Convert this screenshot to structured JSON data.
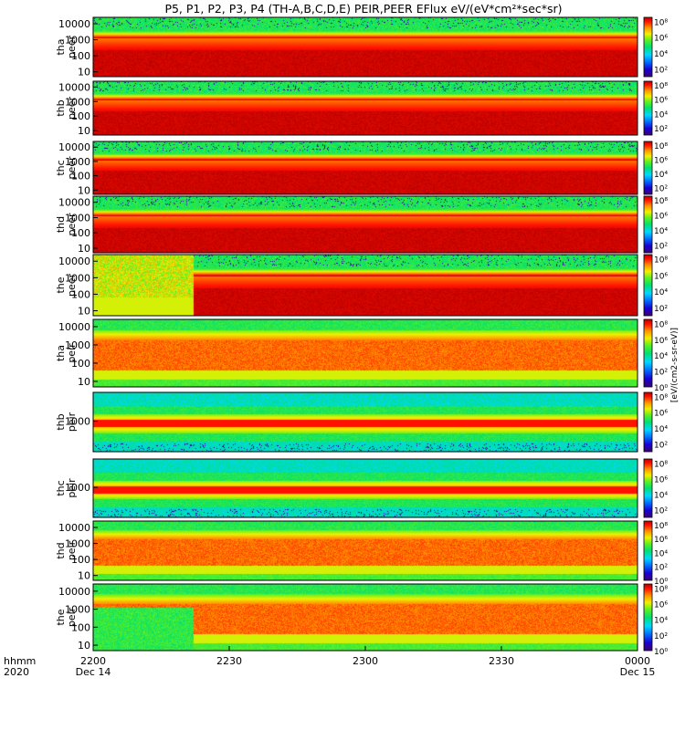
{
  "chart_data": {
    "type": "heatmap",
    "title": "P5, P1, P2, P3, P4 (TH-A,B,C,D,E) PEIR,PEER EFlux eV/(eV*cm²*sec*sr)",
    "x_axis": {
      "row_label_top": "hhmm",
      "row_label_bottom": "2020",
      "ticks": [
        {
          "t": 0,
          "label": "2200",
          "sub": "Dec 14"
        },
        {
          "t": 30,
          "label": "2230",
          "sub": ""
        },
        {
          "t": 60,
          "label": "2300",
          "sub": ""
        },
        {
          "t": 90,
          "label": "2330",
          "sub": ""
        },
        {
          "t": 120,
          "label": "0000",
          "sub": "Dec 15"
        }
      ],
      "range_minutes": [
        0,
        120
      ]
    },
    "colorbar": {
      "label": "[eV/(cm2-s-sr-eV)]",
      "scale": "log"
    },
    "panels": [
      {
        "probe": "tha",
        "product": "peer",
        "yscale": "log",
        "yticks": [
          "10000",
          "1000",
          "100",
          "10"
        ],
        "ylim": [
          5,
          25000
        ],
        "cticks": [
          "10⁸",
          "10⁶",
          "10⁴",
          "10²"
        ],
        "cmin": 1,
        "cmax": 8.5,
        "kind": "electron",
        "low_electron_interval": [
          0,
          0
        ]
      },
      {
        "probe": "thb",
        "product": "peer",
        "yscale": "log",
        "yticks": [
          "10000",
          "1000",
          "100",
          "10"
        ],
        "ylim": [
          5,
          25000
        ],
        "cticks": [
          "10⁸",
          "10⁶",
          "10⁴",
          "10²"
        ],
        "cmin": 1,
        "cmax": 8.5,
        "kind": "electron"
      },
      {
        "probe": "thc",
        "product": "peer",
        "yscale": "log",
        "yticks": [
          "10000",
          "1000",
          "100",
          "10"
        ],
        "ylim": [
          5,
          25000
        ],
        "cticks": [
          "10⁸",
          "10⁶",
          "10⁴",
          "10²"
        ],
        "cmin": 1,
        "cmax": 8.5,
        "kind": "electron"
      },
      {
        "probe": "thd",
        "product": "peer",
        "yscale": "log",
        "yticks": [
          "10000",
          "1000",
          "100",
          "10"
        ],
        "ylim": [
          5,
          25000
        ],
        "cticks": [
          "10⁸",
          "10⁶",
          "10⁴",
          "10²"
        ],
        "cmin": 1,
        "cmax": 8.5,
        "kind": "electron"
      },
      {
        "probe": "the",
        "product": "peer",
        "yscale": "log",
        "yticks": [
          "10000",
          "1000",
          "100",
          "10"
        ],
        "ylim": [
          5,
          25000
        ],
        "cticks": [
          "10⁸",
          "10⁶",
          "10⁴",
          "10²"
        ],
        "cmin": 1,
        "cmax": 8.5,
        "kind": "electron_the"
      },
      {
        "probe": "tha",
        "product": "peir",
        "yscale": "log",
        "yticks": [
          "10000",
          "1000",
          "100",
          "10"
        ],
        "ylim": [
          5,
          25000
        ],
        "cticks": [
          "10⁸",
          "10⁶",
          "10⁴",
          "10²",
          "10⁰"
        ],
        "cmin": 0,
        "cmax": 8.5,
        "kind": "ion"
      },
      {
        "probe": "thb",
        "product": "peir",
        "yscale": "log",
        "yticks": [
          "1000"
        ],
        "ylim": [
          150,
          6000
        ],
        "cticks": [
          "10⁸",
          "10⁶",
          "10⁴",
          "10²"
        ],
        "cmin": 1,
        "cmax": 8.5,
        "kind": "ion_narrow"
      },
      {
        "probe": "thc",
        "product": "peir",
        "yscale": "log",
        "yticks": [
          "1000"
        ],
        "ylim": [
          150,
          6000
        ],
        "cticks": [
          "10⁸",
          "10⁶",
          "10⁴",
          "10²"
        ],
        "cmin": 1,
        "cmax": 8.5,
        "kind": "ion_narrow"
      },
      {
        "probe": "thd",
        "product": "peir",
        "yscale": "log",
        "yticks": [
          "10000",
          "1000",
          "100",
          "10"
        ],
        "ylim": [
          5,
          25000
        ],
        "cticks": [
          "10⁸",
          "10⁶",
          "10⁴",
          "10²",
          "10⁰"
        ],
        "cmin": 0,
        "cmax": 8.5,
        "kind": "ion"
      },
      {
        "probe": "the",
        "product": "peir",
        "yscale": "log",
        "yticks": [
          "10000",
          "1000",
          "100",
          "10"
        ],
        "ylim": [
          5,
          25000
        ],
        "cticks": [
          "10⁸",
          "10⁶",
          "10⁴",
          "10²",
          "10⁰"
        ],
        "cmin": 0,
        "cmax": 8.5,
        "kind": "ion_the"
      }
    ]
  }
}
